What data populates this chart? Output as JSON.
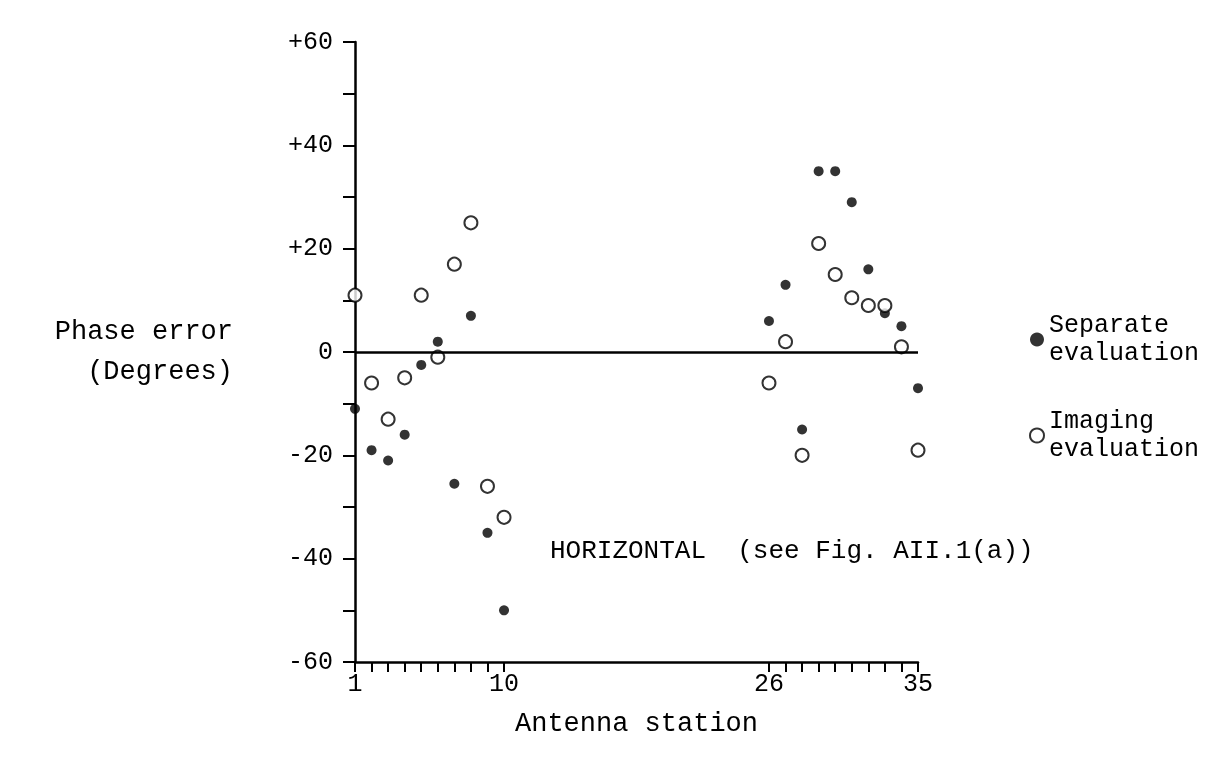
{
  "chart_data": {
    "type": "scatter",
    "xlabel": "Antenna station",
    "ylabel": "Phase error\n(Degrees)",
    "x": [
      1,
      2,
      3,
      4,
      5,
      6,
      7,
      8,
      9,
      10,
      26,
      27,
      28,
      29,
      30,
      31,
      32,
      33,
      34,
      35
    ],
    "series": [
      {
        "name": "Separate evaluation",
        "color": "#000000",
        "values": [
          -11,
          -19,
          -21,
          -16,
          -2.5,
          2,
          -25.5,
          7,
          -35,
          -50,
          6,
          13,
          -15,
          35,
          35,
          29,
          16,
          7.5,
          5,
          -7
        ]
      },
      {
        "name": "Imaging evaluation",
        "color": "#000000",
        "values": [
          11,
          -6,
          -13,
          -5,
          11,
          -1,
          17,
          25,
          -26,
          -32,
          -6,
          2,
          -20,
          21,
          15,
          10.5,
          9,
          9,
          1,
          -19
        ]
      }
    ],
    "xlim": [
      1,
      35
    ],
    "xticks": [
      1,
      {
        "value": 2,
        "label": null
      },
      {
        "value": 3,
        "label": null
      },
      {
        "value": 4,
        "label": null
      },
      {
        "value": 5,
        "label": null
      },
      {
        "value": 6,
        "label": null
      },
      {
        "value": 7,
        "label": null
      },
      {
        "value": 8,
        "label": null
      },
      {
        "value": 9,
        "label": null
      },
      10,
      26,
      {
        "value": 27,
        "label": null
      },
      {
        "value": 28,
        "label": null
      },
      {
        "value": 29,
        "label": null
      },
      {
        "value": 30,
        "label": null
      },
      {
        "value": 31,
        "label": null
      },
      {
        "value": 32,
        "label": null
      },
      {
        "value": 33,
        "label": null
      },
      {
        "value": 34,
        "label": null
      },
      35
    ],
    "ylim": [
      -60,
      60
    ],
    "yticks": [
      {
        "value": -60,
        "label": "-60"
      },
      {
        "value": -50,
        "label": null
      },
      {
        "value": -40,
        "label": "-40"
      },
      {
        "value": -30,
        "label": null
      },
      {
        "value": -20,
        "label": "-20"
      },
      {
        "value": -10,
        "label": null
      },
      0,
      {
        "value": 10,
        "label": null
      },
      {
        "value": 20,
        "label": "+20"
      },
      {
        "value": 30,
        "label": null
      },
      {
        "value": 40,
        "label": "+40"
      },
      {
        "value": 50,
        "label": null
      },
      {
        "value": 60,
        "label": "+60"
      }
    ],
    "ref_lines": [
      {
        "axis": "y",
        "value": 0,
        "color": "#000000"
      }
    ],
    "annotations": [
      "HORIZONTAL  (see Fig. AII.1(a))"
    ],
    "marker": "circle",
    "legend": "right",
    "grid": false
  }
}
